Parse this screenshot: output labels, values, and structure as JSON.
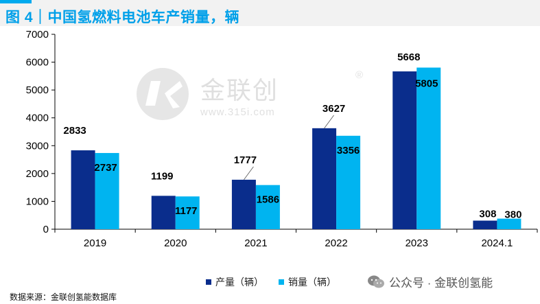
{
  "header": {
    "title": "图 4｜中国氢燃料电池车产销量，辆"
  },
  "watermark": {
    "brand": "金联创",
    "url": "www.315i.com",
    "reg": "®"
  },
  "legend": {
    "production": "产量（辆）",
    "sales": "销量（辆）"
  },
  "footer": {
    "source": "数据来源：金联创氢能数据库",
    "wechat": "公众号 · 金联创氢能"
  },
  "colors": {
    "production": "#0a2d8c",
    "sales": "#00b4f0",
    "title": "#00a0e9"
  },
  "chart_data": {
    "type": "bar",
    "title": "中国氢燃料电池车产销量，辆",
    "categories": [
      "2019",
      "2020",
      "2021",
      "2022",
      "2023",
      "2024.1"
    ],
    "series": [
      {
        "name": "产量（辆）",
        "values": [
          2833,
          1199,
          1777,
          3627,
          5668,
          308
        ]
      },
      {
        "name": "销量（辆）",
        "values": [
          2737,
          1177,
          1586,
          3356,
          5805,
          380
        ]
      }
    ],
    "ylim": [
      0,
      7000
    ],
    "yticks": [
      0,
      1000,
      2000,
      3000,
      4000,
      5000,
      6000,
      7000
    ],
    "xlabel": "",
    "ylabel": "",
    "grid": false,
    "legend_position": "bottom-center"
  }
}
